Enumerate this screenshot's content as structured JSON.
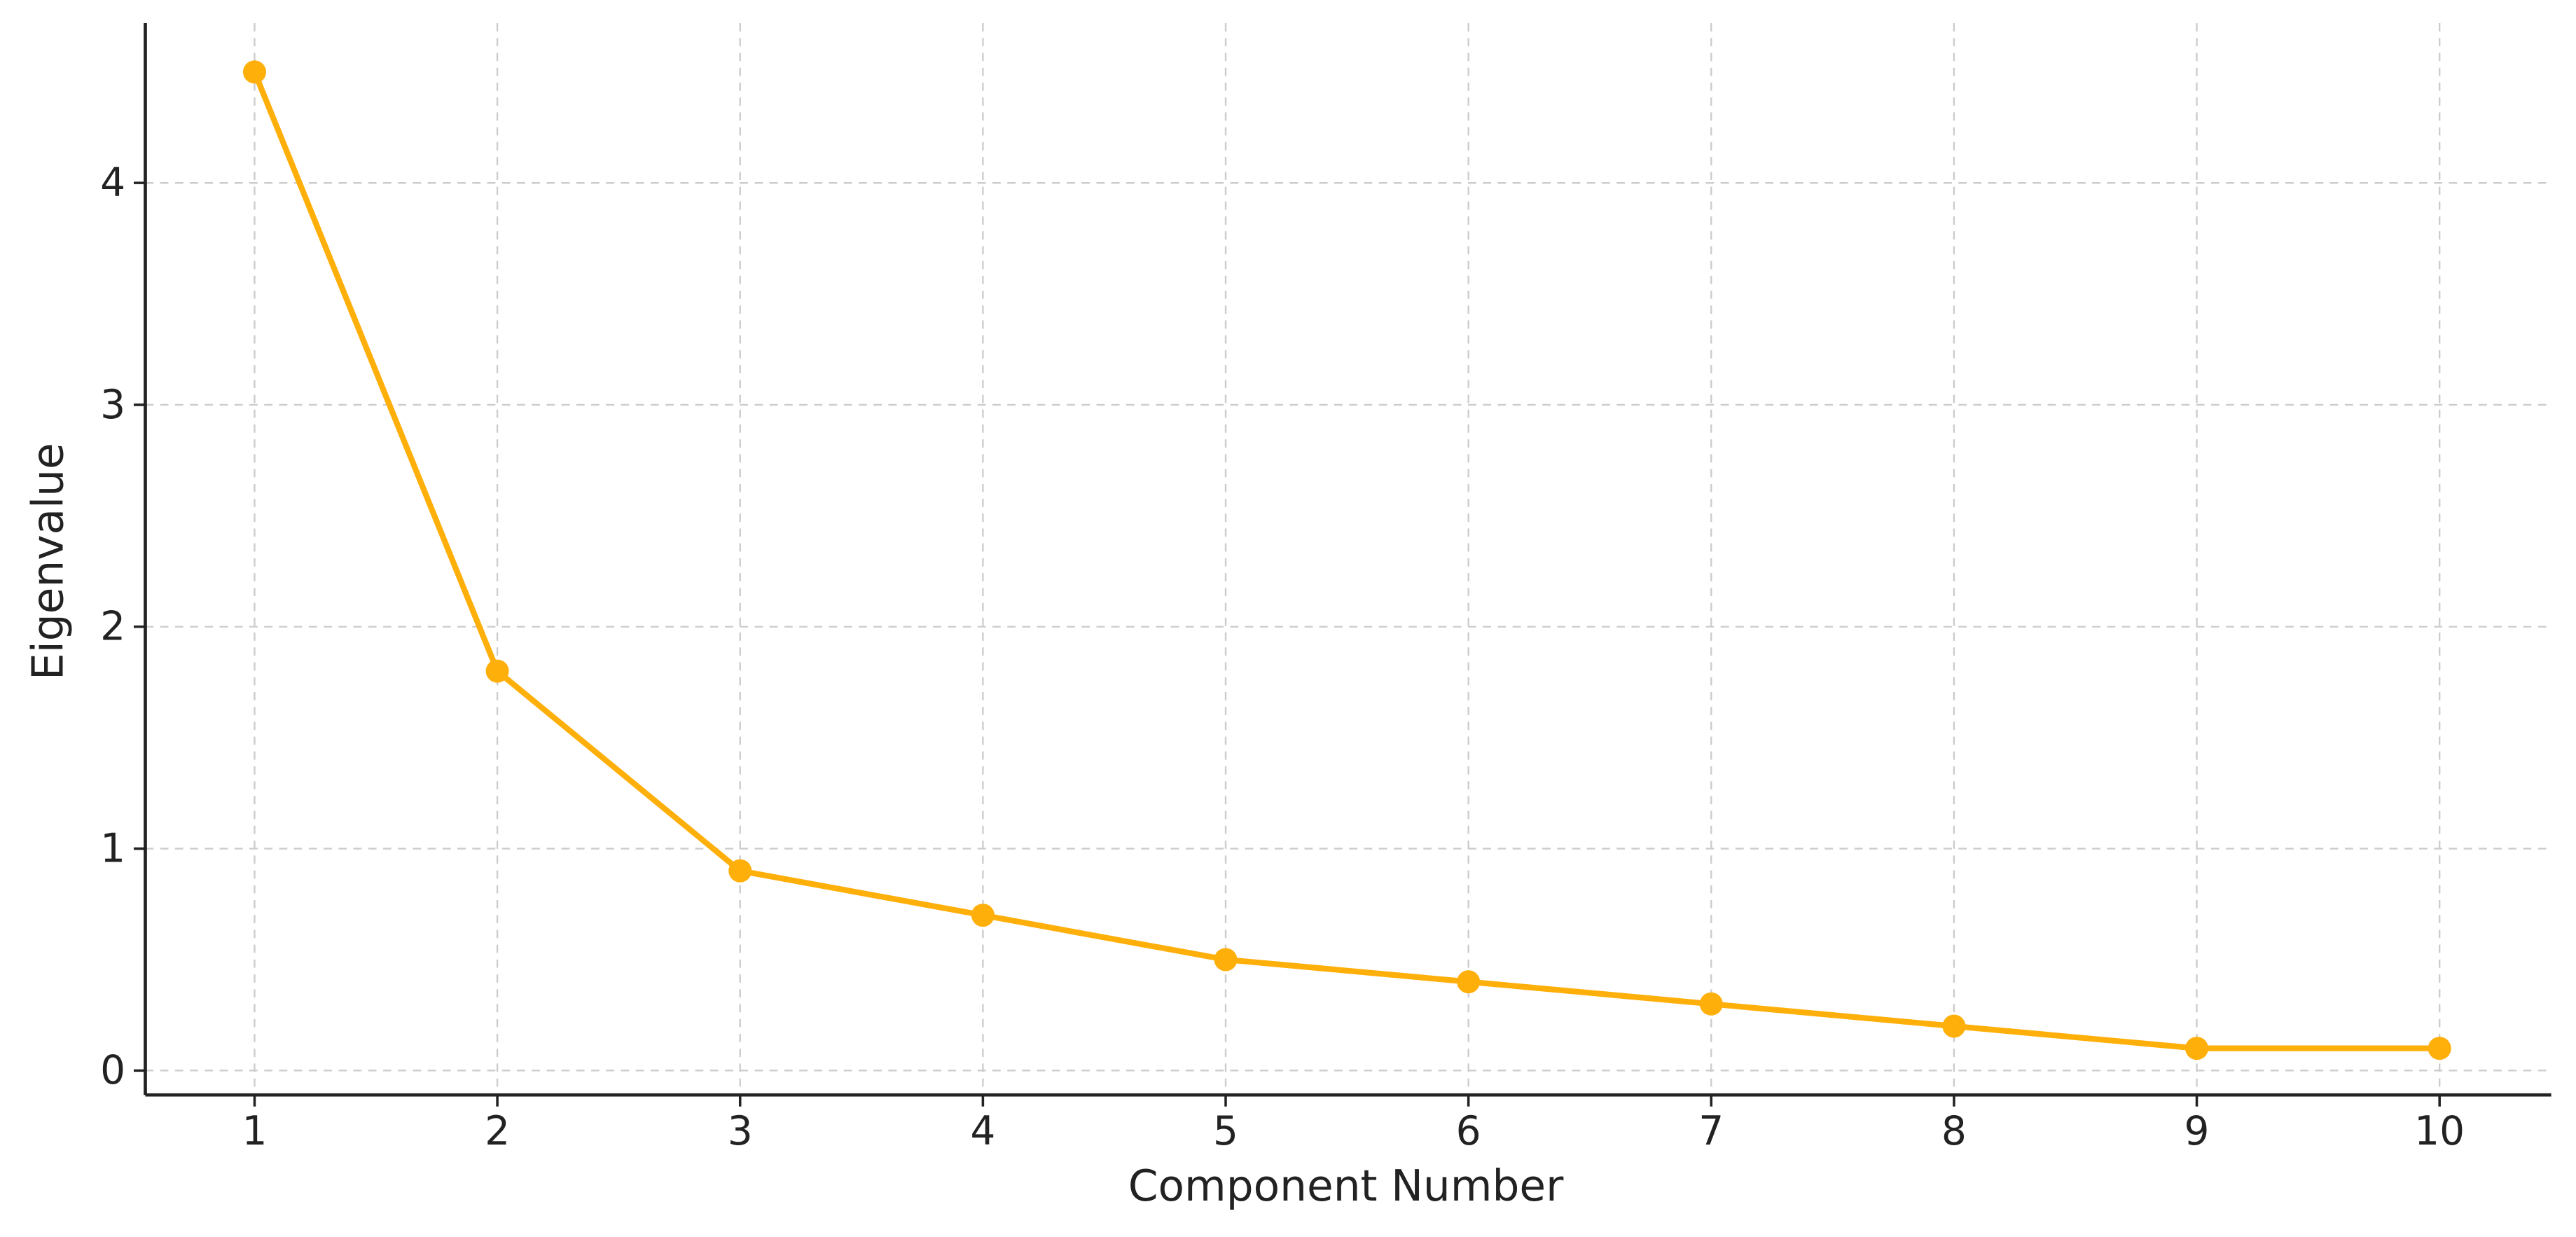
{
  "chart_data": {
    "type": "line",
    "x_label": "Component Number",
    "y_label": "Eigenvalue",
    "x": [
      1,
      2,
      3,
      4,
      5,
      6,
      7,
      8,
      9,
      10
    ],
    "series": [
      {
        "name": "Eigenvalue",
        "color": "#ffaf0a",
        "values": [
          4.5,
          1.8,
          0.9,
          0.7,
          0.5,
          0.4,
          0.3,
          0.2,
          0.1,
          0.1
        ]
      }
    ],
    "xlim": [
      0.55,
      10.46
    ],
    "ylim": [
      -0.11,
      4.72
    ],
    "xticks": [
      1,
      2,
      3,
      4,
      5,
      6,
      7,
      8,
      9,
      10
    ],
    "yticks": [
      0,
      1,
      2,
      3,
      4
    ],
    "grid": true
  }
}
